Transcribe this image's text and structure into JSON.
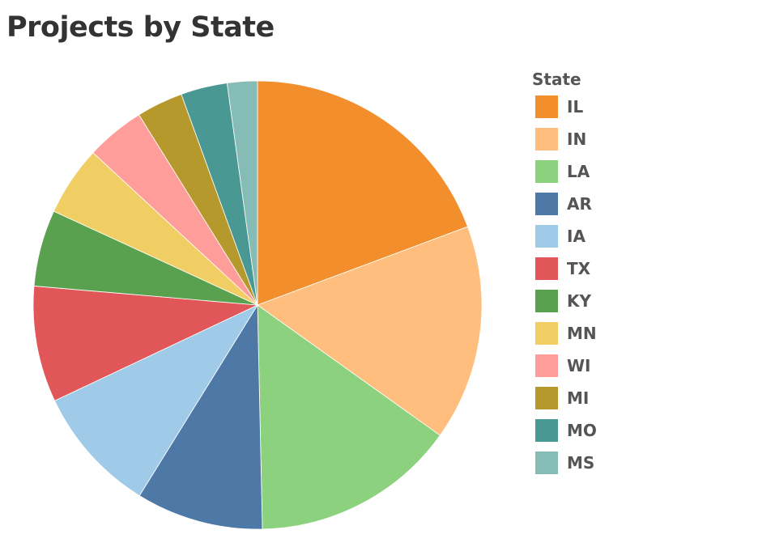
{
  "chart_data": {
    "type": "pie",
    "title": "Projects by State",
    "legend": {
      "title": "State",
      "position": "right"
    },
    "slices": [
      {
        "label": "IL",
        "value": 19.6,
        "color": "#f28e2b"
      },
      {
        "label": "IN",
        "value": 15.8,
        "color": "#ffbe7d"
      },
      {
        "label": "LA",
        "value": 15.0,
        "color": "#8cd17d"
      },
      {
        "label": "AR",
        "value": 9.3,
        "color": "#4e79a7"
      },
      {
        "label": "IA",
        "value": 9.3,
        "color": "#a0cbe8"
      },
      {
        "label": "TX",
        "value": 8.5,
        "color": "#e15759"
      },
      {
        "label": "KY",
        "value": 5.6,
        "color": "#59a14f"
      },
      {
        "label": "MN",
        "value": 5.1,
        "color": "#f1ce63"
      },
      {
        "label": "WI",
        "value": 4.3,
        "color": "#ff9d9a"
      },
      {
        "label": "MI",
        "value": 3.4,
        "color": "#b6992d"
      },
      {
        "label": "MO",
        "value": 3.4,
        "color": "#499894"
      },
      {
        "label": "MS",
        "value": 2.2,
        "color": "#86bcb6"
      }
    ]
  }
}
